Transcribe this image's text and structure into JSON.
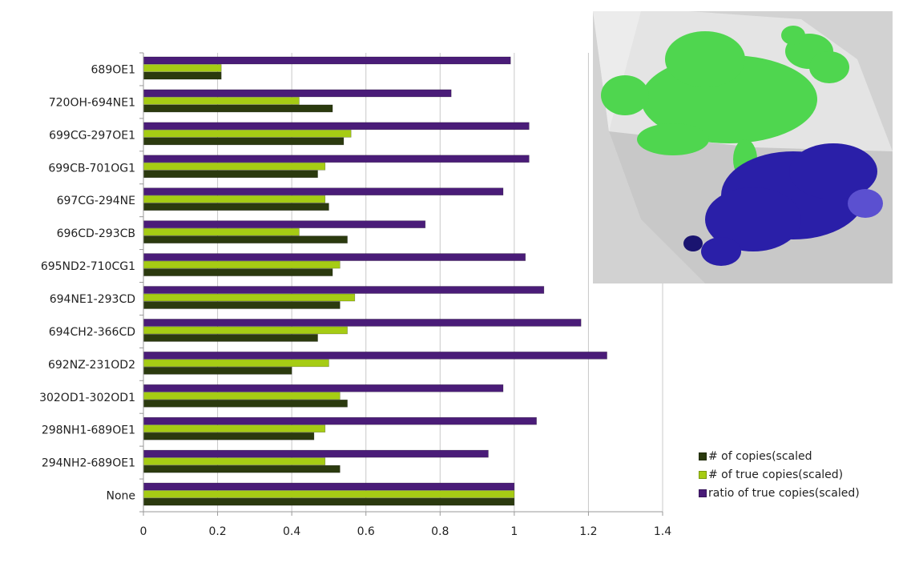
{
  "chart_data": {
    "type": "bar",
    "orientation": "horizontal",
    "categories": [
      "689OE1",
      "720OH-694NE1",
      "699CG-297OE1",
      "699CB-701OG1",
      "697CG-294NE",
      "696CD-293CB",
      "695ND2-710CG1",
      "694NE1-293CD",
      "694CH2-366CD",
      "692NZ-231OD2",
      "302OD1-302OD1",
      "298NH1-689OE1",
      "294NH2-689OE1",
      "None"
    ],
    "series": [
      {
        "name": "# of copies(scaled",
        "color": "#2b3a0e",
        "values": [
          0.21,
          0.51,
          0.54,
          0.47,
          0.5,
          0.55,
          0.51,
          0.53,
          0.47,
          0.4,
          0.55,
          0.46,
          0.53,
          1.0
        ]
      },
      {
        "name": "# of true copies(scaled)",
        "color": "#a6cc14",
        "values": [
          0.21,
          0.42,
          0.56,
          0.49,
          0.49,
          0.42,
          0.53,
          0.57,
          0.55,
          0.5,
          0.53,
          0.49,
          0.49,
          1.0
        ]
      },
      {
        "name": "ratio of true copies(scaled)",
        "color": "#4a1c78",
        "values": [
          0.99,
          0.83,
          1.04,
          1.04,
          0.97,
          0.76,
          1.03,
          1.08,
          1.18,
          1.25,
          0.97,
          1.06,
          0.93,
          1.0
        ]
      }
    ],
    "xlim": [
      0,
      1.4
    ],
    "xticks": [
      "0",
      "0.2",
      "0.4",
      "0.6",
      "0.8",
      "1",
      "1.2",
      "1.4"
    ],
    "grid": true,
    "legend_position": "bottom-right",
    "title": "",
    "xlabel": "",
    "ylabel": ""
  },
  "inset": {
    "description_icon": "protein-structure-image",
    "colors": {
      "green": "#4fd64f",
      "blue": "#2a1fa8",
      "background": "#cfcfcf"
    }
  }
}
